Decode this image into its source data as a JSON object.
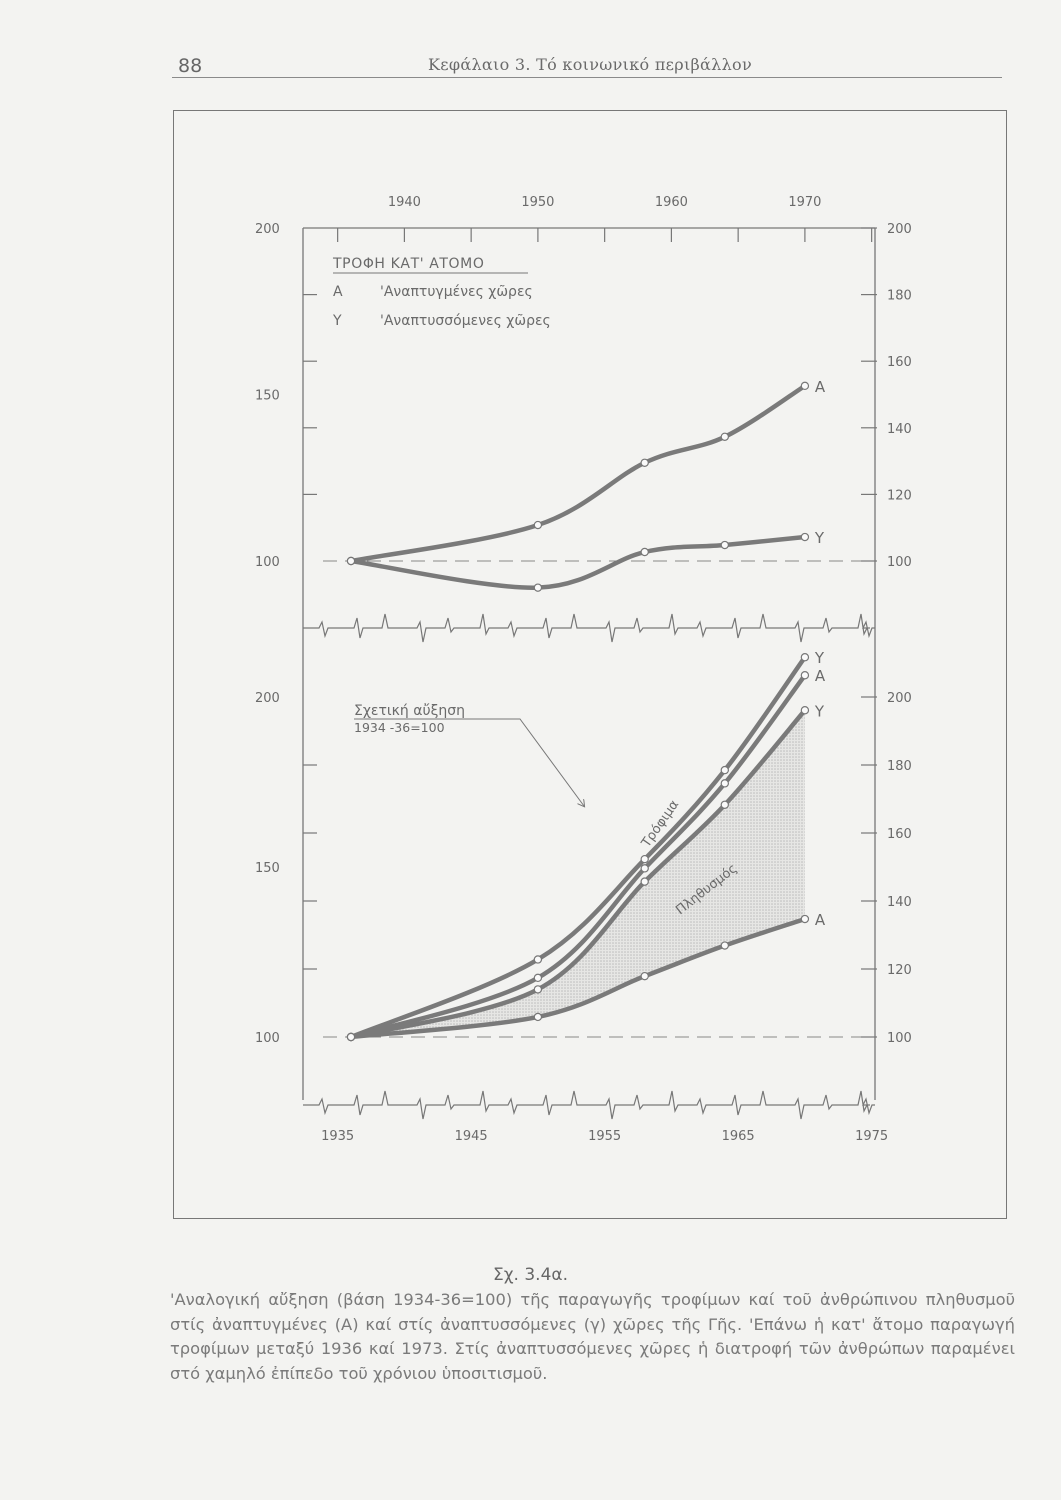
{
  "page": {
    "number": "88",
    "running_head": "Κεφάλαιο 3. Τό κοινωνικό περιβάλλον"
  },
  "caption": {
    "label": "Σχ. 3.4α.",
    "text": "'Αναλογική αὔξηση (βάση 1934-36=100) τῆς παραγωγῆς τροφίμων καί τοῦ ἀνθρώπινου πληθυσμοῦ στίς ἀναπτυγμένες (Α) καί στίς ἀναπτυσσόμενες (γ) χῶρες τῆς Γῆς. 'Επάνω ἡ κατ' ἄτομο παραγωγή τροφίμων μεταξύ 1936 καί 1973. Στίς ἀναπτυσσόμενες χῶρες ἡ διατροφή τῶν ἀνθρώπων παραμένει στό χαμηλό ἐπίπεδο τοῦ χρόνιου ὑποσιτισμοῦ."
  },
  "colors": {
    "line": "#7a7a7a",
    "text": "#6a6a6a",
    "shading": "#d6d6d6",
    "background": "#f3f3f1"
  },
  "chart_data": [
    {
      "type": "line",
      "title": "ΤΡΟΦΗ ΚΑΤ' ΑΤΟΜΟ",
      "legend": [
        {
          "key": "Α",
          "label": "'Αναπτυγμένες χῶρες"
        },
        {
          "key": "Υ",
          "label": "'Αναπτυσσόμενες χῶρες"
        }
      ],
      "legend_placement": "top-left",
      "x_ticks": [
        "1940",
        "1950",
        "1960",
        "1970"
      ],
      "x_tick_position": "top",
      "left_ticks": [
        "200",
        "150",
        "100"
      ],
      "right_ticks": [
        "200",
        "180",
        "160",
        "140",
        "120",
        "100"
      ],
      "ylim": [
        90,
        200
      ],
      "baseline": 100,
      "baseline_style": "dashed",
      "grid": false,
      "x": [
        1936,
        1950,
        1958,
        1964,
        1970
      ],
      "series": [
        {
          "name": "Α",
          "values": [
            100,
            110.8,
            129.5,
            137.3,
            152.6
          ]
        },
        {
          "name": "Υ",
          "values": [
            100,
            92,
            102.7,
            104.8,
            107.2
          ]
        }
      ]
    },
    {
      "type": "line",
      "annotation": {
        "title": "Σχετική αὔξηση",
        "subtitle": "1934 -36=100"
      },
      "group_labels": {
        "food": "Τρόφιμα",
        "population": "Πληθυσμός"
      },
      "x_ticks": [
        "1935",
        "1945",
        "1955",
        "1965",
        "1975"
      ],
      "x_tick_position": "bottom",
      "left_ticks": [
        "200",
        "150",
        "100"
      ],
      "right_ticks": [
        "200",
        "180",
        "160",
        "140",
        "120",
        "100"
      ],
      "ylim": [
        90,
        215
      ],
      "baseline": 100,
      "baseline_style": "dashed",
      "grid": false,
      "x": [
        1936,
        1950,
        1958,
        1964,
        1970
      ],
      "series": [
        {
          "name": "Υ",
          "group": "food",
          "values": [
            100,
            122.8,
            152.3,
            178.5,
            211.7
          ]
        },
        {
          "name": "Α",
          "group": "food",
          "values": [
            100,
            117.4,
            149.6,
            174.6,
            206.4
          ]
        },
        {
          "name": "Υ",
          "group": "population",
          "values": [
            100,
            114,
            145.7,
            168.3,
            196.1
          ]
        },
        {
          "name": "Α",
          "group": "population",
          "values": [
            100,
            105.9,
            117.9,
            126.9,
            134.7
          ]
        }
      ],
      "shaded_between": [
        "population Υ",
        "population Α"
      ]
    }
  ]
}
